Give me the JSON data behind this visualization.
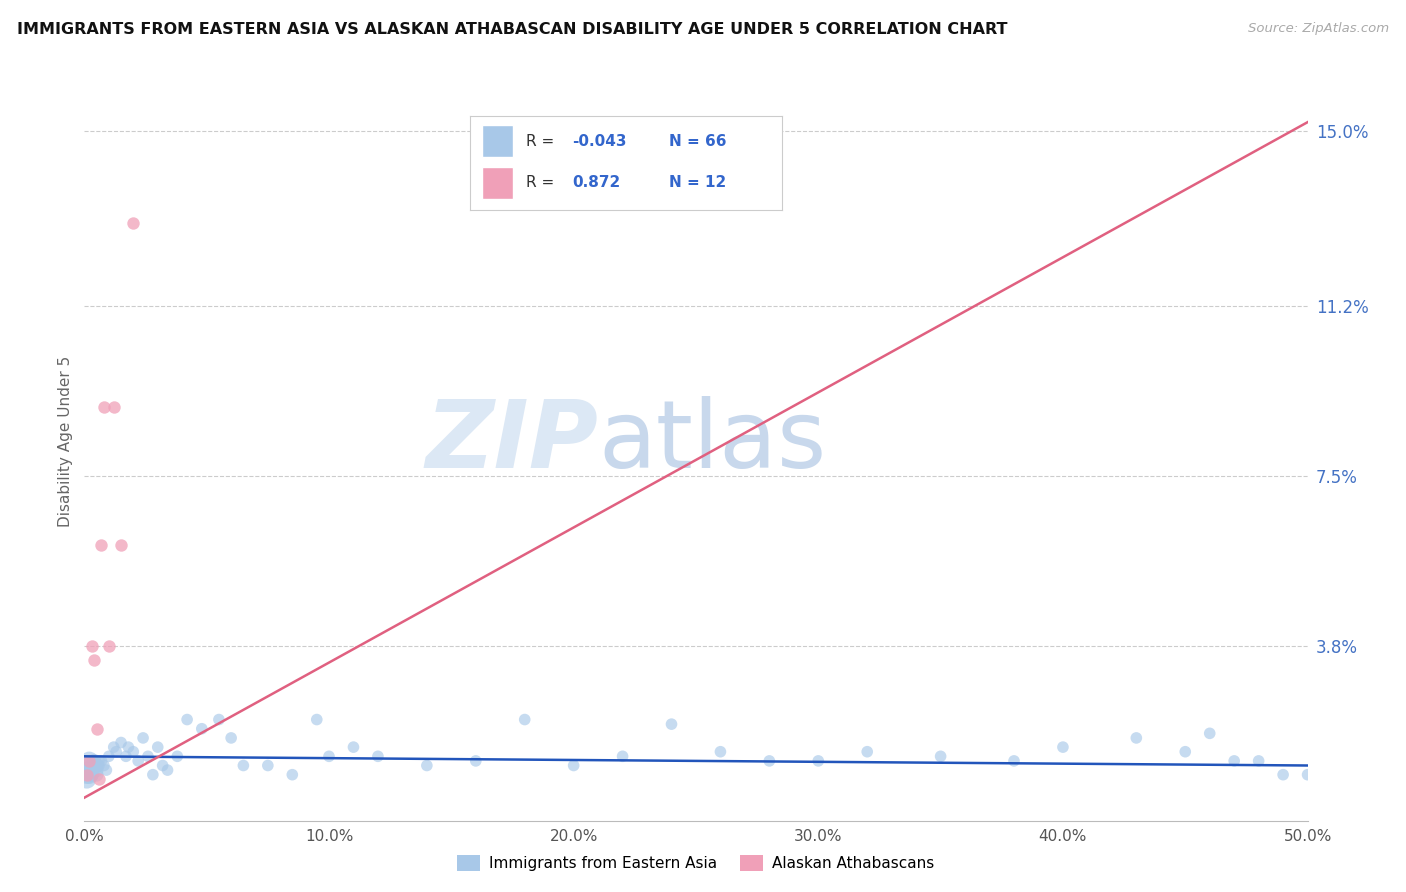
{
  "title": "IMMIGRANTS FROM EASTERN ASIA VS ALASKAN ATHABASCAN DISABILITY AGE UNDER 5 CORRELATION CHART",
  "source": "Source: ZipAtlas.com",
  "ylabel": "Disability Age Under 5",
  "watermark_zip": "ZIP",
  "watermark_atlas": "atlas",
  "blue_R": -0.043,
  "blue_N": 66,
  "pink_R": 0.872,
  "pink_N": 12,
  "xlim": [
    0.0,
    0.5
  ],
  "ylim": [
    0.0,
    0.165
  ],
  "yticks": [
    0.0,
    0.038,
    0.075,
    0.112,
    0.15
  ],
  "ytick_labels": [
    "",
    "3.8%",
    "7.5%",
    "11.2%",
    "15.0%"
  ],
  "xtick_labels": [
    "0.0%",
    "10.0%",
    "20.0%",
    "30.0%",
    "40.0%",
    "50.0%"
  ],
  "xticks": [
    0.0,
    0.1,
    0.2,
    0.3,
    0.4,
    0.5
  ],
  "blue_color": "#a8c8e8",
  "blue_line_color": "#2255bb",
  "pink_color": "#f0a0b8",
  "pink_line_color": "#e06080",
  "legend_color": "#3366cc",
  "blue_x": [
    0.001,
    0.001,
    0.001,
    0.002,
    0.002,
    0.002,
    0.003,
    0.003,
    0.003,
    0.003,
    0.004,
    0.004,
    0.005,
    0.005,
    0.005,
    0.006,
    0.006,
    0.007,
    0.008,
    0.009,
    0.01,
    0.012,
    0.013,
    0.015,
    0.017,
    0.018,
    0.02,
    0.022,
    0.024,
    0.026,
    0.028,
    0.03,
    0.032,
    0.034,
    0.038,
    0.042,
    0.048,
    0.055,
    0.06,
    0.065,
    0.075,
    0.085,
    0.095,
    0.1,
    0.11,
    0.12,
    0.14,
    0.16,
    0.18,
    0.2,
    0.22,
    0.24,
    0.26,
    0.28,
    0.3,
    0.32,
    0.35,
    0.38,
    0.4,
    0.43,
    0.45,
    0.46,
    0.47,
    0.48,
    0.49,
    0.5
  ],
  "blue_y": [
    0.012,
    0.01,
    0.009,
    0.011,
    0.01,
    0.013,
    0.012,
    0.01,
    0.011,
    0.01,
    0.013,
    0.011,
    0.011,
    0.012,
    0.01,
    0.013,
    0.012,
    0.013,
    0.012,
    0.011,
    0.014,
    0.016,
    0.015,
    0.017,
    0.014,
    0.016,
    0.015,
    0.013,
    0.018,
    0.014,
    0.01,
    0.016,
    0.012,
    0.011,
    0.014,
    0.022,
    0.02,
    0.022,
    0.018,
    0.012,
    0.012,
    0.01,
    0.022,
    0.014,
    0.016,
    0.014,
    0.012,
    0.013,
    0.022,
    0.012,
    0.014,
    0.021,
    0.015,
    0.013,
    0.013,
    0.015,
    0.014,
    0.013,
    0.016,
    0.018,
    0.015,
    0.019,
    0.013,
    0.013,
    0.01,
    0.01
  ],
  "pink_x": [
    0.001,
    0.002,
    0.003,
    0.004,
    0.005,
    0.006,
    0.007,
    0.008,
    0.01,
    0.012,
    0.015,
    0.02
  ],
  "pink_y": [
    0.01,
    0.013,
    0.038,
    0.035,
    0.02,
    0.009,
    0.06,
    0.09,
    0.038,
    0.09,
    0.06,
    0.13
  ],
  "blue_line_x": [
    0.0,
    0.5
  ],
  "blue_line_y": [
    0.014,
    0.012
  ],
  "pink_line_x": [
    0.0,
    0.5
  ],
  "pink_line_y": [
    0.005,
    0.152
  ]
}
